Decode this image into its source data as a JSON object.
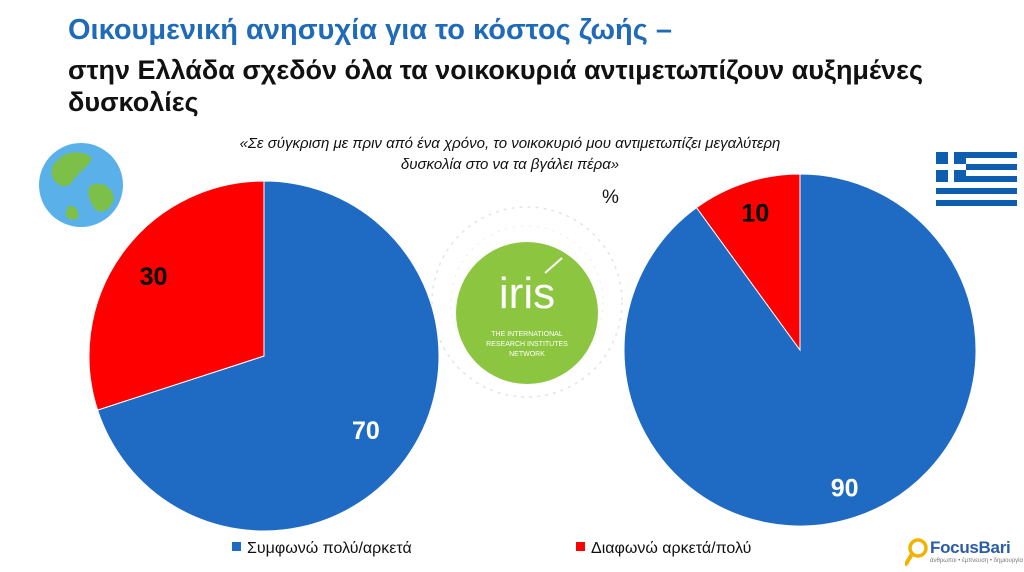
{
  "header": {
    "title": "Οικουμενική ανησυχία για το κόστος ζωής –",
    "subtitle": "στην Ελλάδα σχεδόν όλα τα νοικοκυριά αντιμετωπίζουν αυξημένες δυσκολίες",
    "question": "«Σε σύγκριση με πριν από ένα χρόνο, το νοικοκυριό μου αντιμετωπίζει μεγαλύτερη δυσκολία στο να τα βγάλει πέρα»",
    "unit": "%"
  },
  "colors": {
    "agree": "#1f6bc4",
    "disagree": "#ff0000"
  },
  "icons": [
    "globe-icon",
    "greek-flag-icon",
    "iris-logo",
    "focusbari-logo"
  ],
  "logos": {
    "iris": "iris",
    "iris_tagline": "THE INTERNATIONAL RESEARCH INSTITUTES NETWORK",
    "brand_name": "FocusBari",
    "brand_tagline": "άνθρωποι • έμπνευση • δημιουργία"
  },
  "chart_data": [
    {
      "type": "pie",
      "labels": [
        "Συμφωνώ πολύ/αρκετά",
        "Διαφωνώ αρκετά/πολύ"
      ],
      "values": [
        70,
        30
      ]
    },
    {
      "type": "pie",
      "labels": [
        "Συμφωνώ πολύ/αρκετά",
        "Διαφωνώ αρκετά/πολύ"
      ],
      "values": [
        90,
        10
      ]
    }
  ],
  "legend": {
    "agree_label": "Συμφωνώ πολύ/αρκετά",
    "disagree_label": "Διαφωνώ αρκετά/πολύ"
  }
}
